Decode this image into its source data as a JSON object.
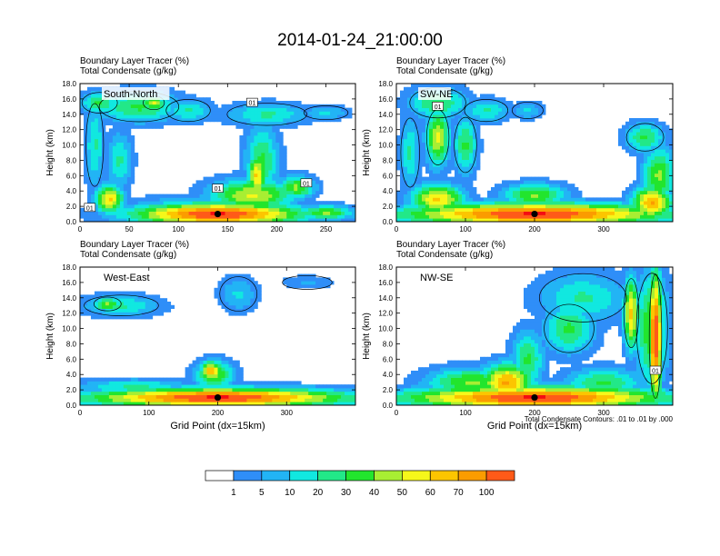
{
  "title": "2014-01-24_21:00:00",
  "palette": [
    "#ffffff",
    "#2f8ef8",
    "#22b4f5",
    "#11e8e0",
    "#22e888",
    "#22e52d",
    "#a8ee33",
    "#f6f71a",
    "#fcc500",
    "#fb9c00",
    "#ff5a18",
    "#f40c12"
  ],
  "colorbar_labels": [
    "1",
    "5",
    "10",
    "20",
    "30",
    "40",
    "50",
    "60",
    "70",
    "100"
  ],
  "contour_note": "Total Condensate Contours: .01 to .01 by .000",
  "chart_data": [
    {
      "type": "heatmap",
      "label": "South-North",
      "header_lines": [
        "Boundary Layer Tracer   (%)",
        "Total Condensate   (g/kg)"
      ],
      "ylabel": "Height (km)",
      "xlabel": "",
      "xlim": [
        0,
        280
      ],
      "ylim": [
        0,
        18
      ],
      "xticks": [
        "0",
        "50",
        "100",
        "150",
        "200",
        "250"
      ],
      "yticks": [
        "0.0",
        "2.0",
        "4.0",
        "6.0",
        "8.0",
        "10.0",
        "12.0",
        "14.0",
        "16.0",
        "18.0"
      ],
      "marker": {
        "x": 140,
        "y": 1.0
      },
      "contour_labels": [
        {
          "x": 175,
          "y": 15.5,
          "text": "01"
        },
        {
          "x": 140,
          "y": 4.3,
          "text": "01"
        },
        {
          "x": 230,
          "y": 5.0,
          "text": "01"
        },
        {
          "x": 10,
          "y": 1.8,
          "text": "01"
        }
      ],
      "blobs": [
        {
          "x": 20,
          "y": 15.5,
          "sx": 20,
          "sy": 1.5,
          "v": 5
        },
        {
          "x": 60,
          "y": 15.0,
          "sx": 45,
          "sy": 2.2,
          "v": 5
        },
        {
          "x": 110,
          "y": 14.5,
          "sx": 25,
          "sy": 1.6,
          "v": 4
        },
        {
          "x": 75,
          "y": 15.5,
          "sx": 12,
          "sy": 1.0,
          "v": 7
        },
        {
          "x": 190,
          "y": 14.0,
          "sx": 45,
          "sy": 1.6,
          "v": 4
        },
        {
          "x": 250,
          "y": 14.2,
          "sx": 25,
          "sy": 1.0,
          "v": 3
        },
        {
          "x": 15,
          "y": 10,
          "sx": 10,
          "sy": 6,
          "v": 4
        },
        {
          "x": 40,
          "y": 8,
          "sx": 14,
          "sy": 4,
          "v": 4
        },
        {
          "x": 185,
          "y": 8,
          "sx": 18,
          "sy": 5,
          "v": 5
        },
        {
          "x": 180,
          "y": 6,
          "sx": 10,
          "sy": 3,
          "v": 8
        },
        {
          "x": 175,
          "y": 3.5,
          "sx": 45,
          "sy": 2.2,
          "v": 7
        },
        {
          "x": 220,
          "y": 4.5,
          "sx": 20,
          "sy": 1.6,
          "v": 6
        },
        {
          "x": 140,
          "y": 1.0,
          "sx": 90,
          "sy": 1.5,
          "v": 11
        },
        {
          "x": 30,
          "y": 3,
          "sx": 15,
          "sy": 2,
          "v": 8
        },
        {
          "x": 250,
          "y": 1.2,
          "sx": 30,
          "sy": 1.0,
          "v": 6
        },
        {
          "x": 100,
          "y": 2.2,
          "sx": 60,
          "sy": 1.2,
          "v": 3
        }
      ]
    },
    {
      "type": "heatmap",
      "label": "SW-NE",
      "header_lines": [
        "Boundary Layer Tracer   (%)",
        "Total Condensate   (g/kg)"
      ],
      "ylabel": "Height (km)",
      "xlabel": "",
      "xlim": [
        0,
        400
      ],
      "ylim": [
        0,
        18
      ],
      "xticks": [
        "0",
        "100",
        "200",
        "300"
      ],
      "yticks": [
        "0.0",
        "2.0",
        "4.0",
        "6.0",
        "8.0",
        "10.0",
        "12.0",
        "14.0",
        "16.0",
        "18.0"
      ],
      "marker": {
        "x": 200,
        "y": 1.0
      },
      "contour_labels": [
        {
          "x": 60,
          "y": 15.0,
          "text": "01"
        }
      ],
      "blobs": [
        {
          "x": 60,
          "y": 15.5,
          "sx": 45,
          "sy": 2.2,
          "v": 5
        },
        {
          "x": 130,
          "y": 14.5,
          "sx": 35,
          "sy": 1.6,
          "v": 4
        },
        {
          "x": 190,
          "y": 14.5,
          "sx": 25,
          "sy": 1.2,
          "v": 3
        },
        {
          "x": 60,
          "y": 11,
          "sx": 18,
          "sy": 4,
          "v": 7
        },
        {
          "x": 20,
          "y": 9,
          "sx": 15,
          "sy": 5,
          "v": 4
        },
        {
          "x": 100,
          "y": 10,
          "sx": 18,
          "sy": 4,
          "v": 5
        },
        {
          "x": 360,
          "y": 11,
          "sx": 30,
          "sy": 2,
          "v": 5
        },
        {
          "x": 380,
          "y": 6,
          "sx": 25,
          "sy": 4,
          "v": 6
        },
        {
          "x": 200,
          "y": 1.0,
          "sx": 200,
          "sy": 1.5,
          "v": 11
        },
        {
          "x": 370,
          "y": 2.5,
          "sx": 30,
          "sy": 2.2,
          "v": 9
        },
        {
          "x": 60,
          "y": 3,
          "sx": 40,
          "sy": 2,
          "v": 8
        },
        {
          "x": 200,
          "y": 3.5,
          "sx": 50,
          "sy": 1.6,
          "v": 6
        }
      ]
    },
    {
      "type": "heatmap",
      "label": "West-East",
      "header_lines": [
        "Boundary Layer Tracer   (%)",
        "Total Condensate   (g/kg)"
      ],
      "ylabel": "Height (km)",
      "xlabel": "Grid Point (dx=15km)",
      "xlim": [
        0,
        400
      ],
      "ylim": [
        0,
        18
      ],
      "xticks": [
        "0",
        "100",
        "200",
        "300"
      ],
      "yticks": [
        "0.0",
        "2.0",
        "4.0",
        "6.0",
        "8.0",
        "10.0",
        "12.0",
        "14.0",
        "16.0",
        "18.0"
      ],
      "marker": {
        "x": 200,
        "y": 1.0
      },
      "contour_labels": [],
      "blobs": [
        {
          "x": 60,
          "y": 13.0,
          "sx": 60,
          "sy": 1.5,
          "v": 4
        },
        {
          "x": 40,
          "y": 13.2,
          "sx": 22,
          "sy": 1.0,
          "v": 6
        },
        {
          "x": 230,
          "y": 14.5,
          "sx": 30,
          "sy": 2.5,
          "v": 3
        },
        {
          "x": 330,
          "y": 16,
          "sx": 40,
          "sy": 1.0,
          "v": 2
        },
        {
          "x": 195,
          "y": 4,
          "sx": 30,
          "sy": 2,
          "v": 6
        },
        {
          "x": 190,
          "y": 4.5,
          "sx": 15,
          "sy": 1.3,
          "v": 9
        },
        {
          "x": 200,
          "y": 1.0,
          "sx": 200,
          "sy": 1.3,
          "v": 11
        },
        {
          "x": 80,
          "y": 2.5,
          "sx": 90,
          "sy": 1.0,
          "v": 4
        }
      ]
    },
    {
      "type": "heatmap",
      "label": "NW-SE",
      "header_lines": [
        "Boundary Layer Tracer   (%)",
        "Total Condensate   (g/kg)"
      ],
      "ylabel": "Height (km)",
      "xlabel": "Grid Point (dx=15km)",
      "xlim": [
        0,
        400
      ],
      "ylim": [
        0,
        18
      ],
      "xticks": [
        "0",
        "100",
        "200",
        "300"
      ],
      "yticks": [
        "0.0",
        "2.0",
        "4.0",
        "6.0",
        "8.0",
        "10.0",
        "12.0",
        "14.0",
        "16.0",
        "18.0"
      ],
      "marker": {
        "x": 200,
        "y": 1.0
      },
      "contour_labels": [
        {
          "x": 375,
          "y": 4.5,
          "text": "01"
        }
      ],
      "blobs": [
        {
          "x": 270,
          "y": 14,
          "sx": 70,
          "sy": 3.5,
          "v": 4
        },
        {
          "x": 250,
          "y": 10,
          "sx": 40,
          "sy": 3.5,
          "v": 5
        },
        {
          "x": 370,
          "y": 10,
          "sx": 25,
          "sy": 8,
          "v": 6
        },
        {
          "x": 375,
          "y": 9,
          "sx": 10,
          "sy": 9,
          "v": 11
        },
        {
          "x": 340,
          "y": 12,
          "sx": 12,
          "sy": 5,
          "v": 8
        },
        {
          "x": 190,
          "y": 6,
          "sx": 25,
          "sy": 4,
          "v": 5
        },
        {
          "x": 200,
          "y": 1.0,
          "sx": 200,
          "sy": 1.5,
          "v": 11
        },
        {
          "x": 110,
          "y": 3,
          "sx": 70,
          "sy": 2,
          "v": 6
        },
        {
          "x": 300,
          "y": 3,
          "sx": 60,
          "sy": 2,
          "v": 5
        },
        {
          "x": 160,
          "y": 3,
          "sx": 40,
          "sy": 2.5,
          "v": 9
        }
      ]
    }
  ]
}
